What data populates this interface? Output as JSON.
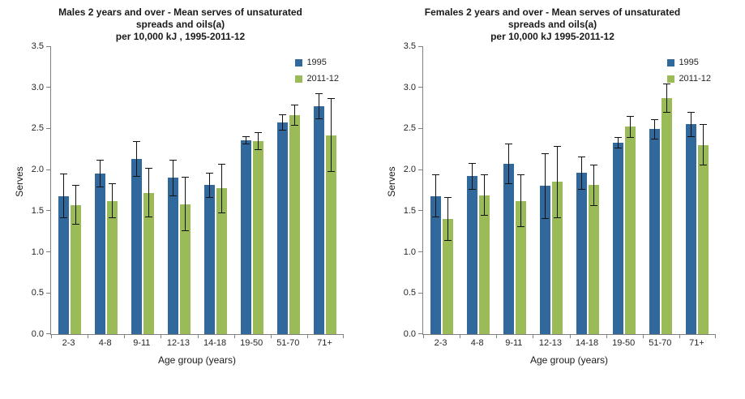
{
  "page": {
    "background": "#ffffff"
  },
  "colors": {
    "series_1995": "#31699c",
    "series_2011": "#9bbb59",
    "axis": "#808080",
    "error_bar": "#111111"
  },
  "chart_data": [
    {
      "type": "bar",
      "title_lines": [
        "Males 2 years and over - Mean serves of unsaturated",
        "spreads and oils(a)",
        "per 10,000 kJ , 1995-2011-12"
      ],
      "xlabel": "Age group (years)",
      "ylabel": "Serves",
      "ylim": [
        0,
        3.5
      ],
      "ytick_step": 0.5,
      "grid": false,
      "legend_position": "top-right",
      "categories": [
        "2-3",
        "4-8",
        "9-11",
        "12-13",
        "14-18",
        "19-50",
        "51-70",
        "71+"
      ],
      "series": [
        {
          "name": "1995",
          "color": "#31699c",
          "values": [
            1.68,
            1.95,
            2.13,
            1.9,
            1.81,
            2.36,
            2.57,
            2.77
          ],
          "err": [
            0.27,
            0.17,
            0.22,
            0.22,
            0.15,
            0.05,
            0.1,
            0.16
          ]
        },
        {
          "name": "2011-12",
          "color": "#9bbb59",
          "values": [
            1.57,
            1.62,
            1.72,
            1.58,
            1.77,
            2.35,
            2.66,
            2.42
          ],
          "err": [
            0.24,
            0.21,
            0.3,
            0.33,
            0.3,
            0.11,
            0.13,
            0.45
          ]
        }
      ]
    },
    {
      "type": "bar",
      "title_lines": [
        "Females 2 years and over - Mean serves of unsaturated",
        "spreads and oils(a)",
        "per 10,000 kJ 1995-2011-12"
      ],
      "xlabel": "Age group (years)",
      "ylabel": "Serves",
      "ylim": [
        0,
        3.5
      ],
      "ytick_step": 0.5,
      "grid": false,
      "legend_position": "top-right",
      "categories": [
        "2-3",
        "4-8",
        "9-11",
        "12-13",
        "14-18",
        "19-50",
        "51-70",
        "71+"
      ],
      "series": [
        {
          "name": "1995",
          "color": "#31699c",
          "values": [
            1.68,
            1.92,
            2.07,
            1.8,
            1.96,
            2.33,
            2.49,
            2.55
          ],
          "err": [
            0.26,
            0.16,
            0.25,
            0.4,
            0.2,
            0.07,
            0.12,
            0.15
          ]
        },
        {
          "name": "2011-12",
          "color": "#9bbb59",
          "values": [
            1.4,
            1.69,
            1.62,
            1.85,
            1.81,
            2.52,
            2.87,
            2.3
          ],
          "err": [
            0.27,
            0.25,
            0.32,
            0.44,
            0.25,
            0.13,
            0.18,
            0.25
          ]
        }
      ]
    }
  ]
}
